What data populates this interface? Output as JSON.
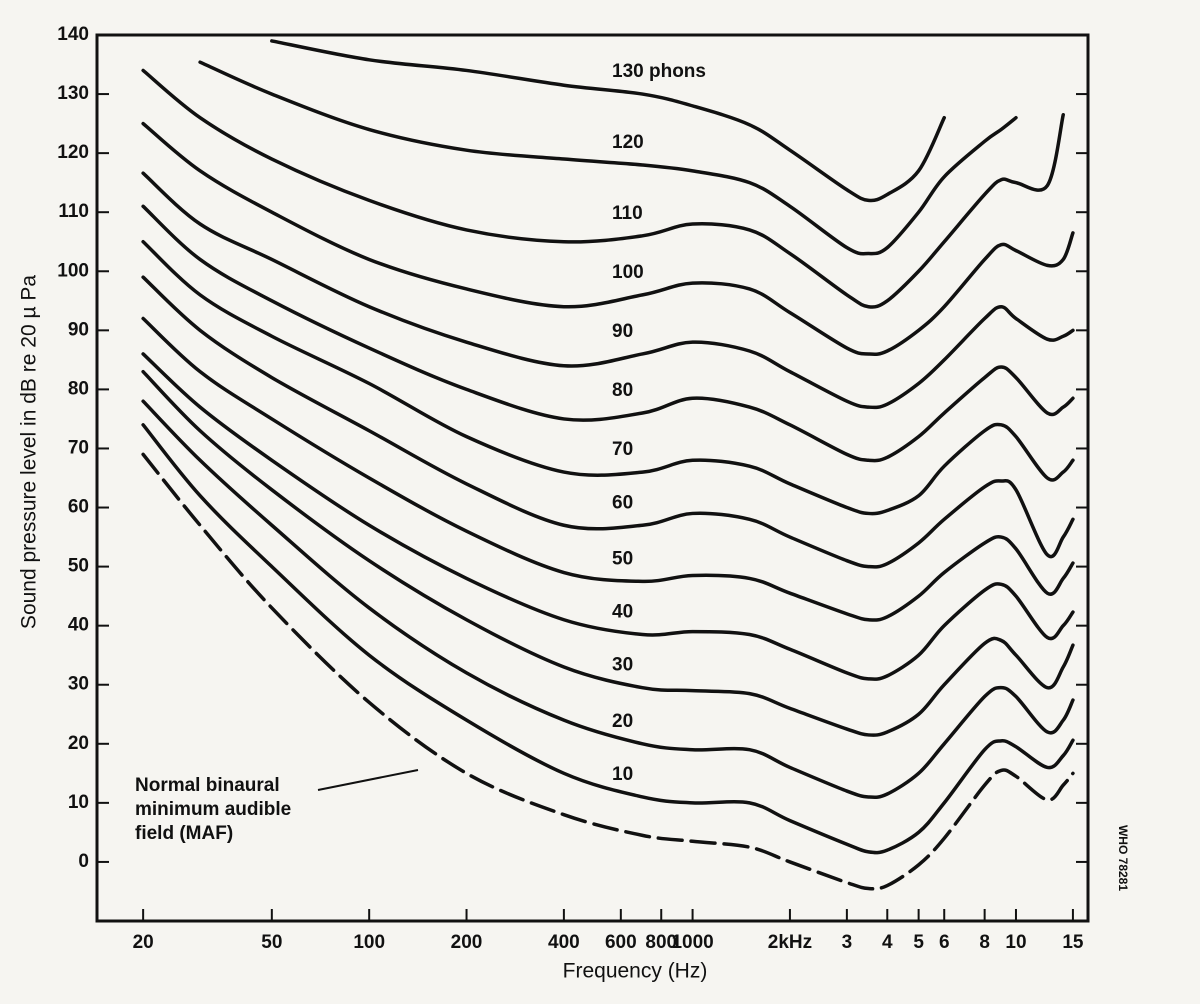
{
  "chart_data": {
    "type": "line",
    "x_label": "Frequency (Hz)",
    "y_label": "Sound pressure level in dB re 20 µ Pa",
    "side_note": "WHO 78281",
    "annotation": [
      "Normal binaural",
      "minimum audible",
      "field (MAF)"
    ],
    "log_x": true,
    "xlim": [
      14.4,
      16700
    ],
    "ylim": [
      -10,
      140
    ],
    "xticks": [
      20,
      50,
      100,
      200,
      400,
      600,
      800,
      1000,
      {
        "value": 2000,
        "label": "2kHz"
      },
      {
        "value": 3000,
        "label": "3"
      },
      {
        "value": 4000,
        "label": "4"
      },
      {
        "value": 5000,
        "label": "5"
      },
      {
        "value": 6000,
        "label": "6"
      },
      {
        "value": 8000,
        "label": "8"
      },
      {
        "value": 10000,
        "label": "10"
      },
      {
        "value": 15000,
        "label": "15"
      }
    ],
    "yticks": [
      0,
      10,
      20,
      30,
      40,
      50,
      60,
      70,
      80,
      90,
      100,
      110,
      120,
      130,
      140
    ],
    "x": [
      20,
      30,
      50,
      100,
      200,
      400,
      700,
      1000,
      1500,
      2000,
      3000,
      3500,
      4000,
      5000,
      6000,
      8000,
      9000,
      10000,
      12500,
      14000,
      15000
    ],
    "series": [
      {
        "color": "#111111",
        "dashed": true,
        "values": [
          69,
          57,
          43,
          27,
          15,
          8,
          4.5,
          3.5,
          2.5,
          0,
          -3.5,
          -4.5,
          -4,
          -0.5,
          4,
          13,
          15.5,
          14.5,
          10.5,
          13,
          15
        ]
      },
      {
        "name": "10",
        "color": "#111111",
        "values": [
          74,
          62,
          50,
          35,
          24,
          15,
          11,
          10,
          10,
          7,
          3,
          1.7,
          2,
          5,
          10,
          19,
          20.5,
          19.5,
          16,
          18,
          20.6
        ]
      },
      {
        "name": "20",
        "color": "#111111",
        "values": [
          78,
          68,
          57,
          43,
          32,
          24,
          20,
          19,
          19,
          16,
          12,
          11,
          11.5,
          15,
          20,
          28,
          29.5,
          28,
          22,
          24,
          27.4
        ]
      },
      {
        "name": "30",
        "color": "#111111",
        "values": [
          83,
          73,
          63,
          51,
          41,
          33,
          29.5,
          29,
          28.5,
          26,
          22.5,
          21.5,
          22,
          25,
          30,
          37,
          37.5,
          35,
          29.5,
          33,
          36.7
        ]
      },
      {
        "name": "40",
        "color": "#111111",
        "values": [
          86,
          77,
          68,
          57,
          48,
          41,
          38.5,
          39,
          38.5,
          36,
          32,
          31,
          31.5,
          35,
          40,
          46,
          47,
          45,
          38,
          40,
          42.3
        ]
      },
      {
        "name": "50",
        "color": "#111111",
        "values": [
          92,
          83,
          75,
          65,
          56,
          49,
          47.5,
          48.5,
          48,
          45.5,
          42,
          41,
          41.5,
          45,
          49,
          54,
          55,
          53,
          45.5,
          48,
          50.6
        ]
      },
      {
        "name": "60",
        "color": "#111111",
        "values": [
          99,
          90,
          82,
          73,
          64,
          57,
          57,
          59,
          58,
          55,
          51,
          50,
          50.5,
          54,
          58,
          63.5,
          64.5,
          63,
          52,
          55,
          58
        ]
      },
      {
        "name": "70",
        "color": "#111111",
        "values": [
          105,
          96,
          89,
          81,
          72,
          66,
          66,
          68,
          67,
          64,
          60,
          59,
          59.5,
          62,
          67,
          73,
          74,
          72,
          65,
          66,
          68
        ]
      },
      {
        "name": "80",
        "color": "#111111",
        "values": [
          111,
          102,
          95,
          87,
          80,
          75,
          76,
          78.5,
          77,
          74,
          69,
          68,
          68.5,
          72,
          76,
          82,
          83.8,
          82,
          76,
          77,
          78.5
        ]
      },
      {
        "name": "90",
        "color": "#111111",
        "values": [
          116.6,
          108,
          102,
          94,
          88,
          84,
          86,
          88,
          86.5,
          83,
          78,
          77,
          77.5,
          81,
          85,
          92,
          94,
          92,
          88.5,
          89,
          90
        ]
      },
      {
        "name": "100",
        "color": "#111111",
        "values": [
          125,
          117,
          110,
          102,
          97,
          94,
          96,
          98,
          97,
          93,
          87,
          86,
          86.5,
          90,
          94,
          102,
          104.5,
          103.5,
          101,
          102,
          106.5
        ]
      },
      {
        "name": "110",
        "color": "#111111",
        "values": [
          134,
          126,
          119,
          112,
          107,
          105,
          106,
          108,
          107,
          103,
          96,
          94,
          95,
          100,
          105,
          113,
          115.5,
          115,
          114.5,
          126.5,
          null
        ]
      },
      {
        "name": "120",
        "color": "#111111",
        "values": [
          null,
          135.4,
          130,
          124,
          120.5,
          119,
          118,
          117,
          115,
          111,
          104,
          103,
          104,
          110,
          116,
          122,
          124,
          126,
          null,
          null,
          null
        ]
      },
      {
        "name": "130 phons",
        "color": "#111111",
        "values": [
          null,
          null,
          139,
          135.8,
          134,
          131.5,
          130,
          128,
          124.8,
          120.5,
          113.8,
          112,
          113,
          117,
          126,
          null,
          null,
          null,
          null,
          null,
          null
        ]
      }
    ]
  }
}
